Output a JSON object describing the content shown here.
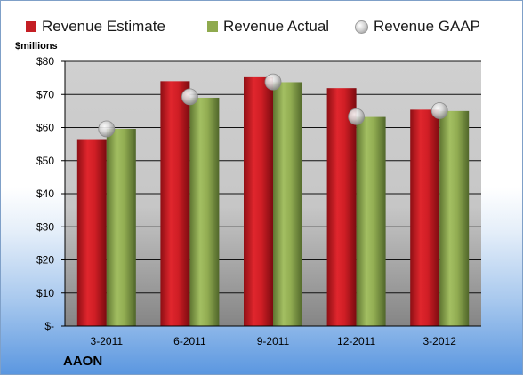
{
  "chart_data": {
    "type": "bar",
    "ylabel": "$millions",
    "ylim": [
      0,
      80
    ],
    "yticks": [
      0,
      10,
      20,
      30,
      40,
      50,
      60,
      70,
      80
    ],
    "ytick_labels": [
      "$-",
      "$10",
      "$20",
      "$30",
      "$40",
      "$50",
      "$60",
      "$70",
      "$80"
    ],
    "categories": [
      "3-2011",
      "6-2011",
      "9-2011",
      "12-2011",
      "3-2012"
    ],
    "series": [
      {
        "name": "Revenue Estimate",
        "kind": "bar",
        "color": "#c41e24",
        "values": [
          56.5,
          74.0,
          75.2,
          71.9,
          65.4
        ]
      },
      {
        "name": "Revenue Actual",
        "kind": "bar",
        "color": "#8faa4e",
        "values": [
          59.6,
          69.0,
          73.7,
          63.2,
          65.0
        ]
      },
      {
        "name": "Revenue GAAP",
        "kind": "marker",
        "color": "#c8c8c8",
        "values": [
          59.6,
          69.3,
          73.8,
          63.3,
          65.1
        ]
      }
    ],
    "legend_position": "top",
    "grid": true
  },
  "company": "AAON"
}
